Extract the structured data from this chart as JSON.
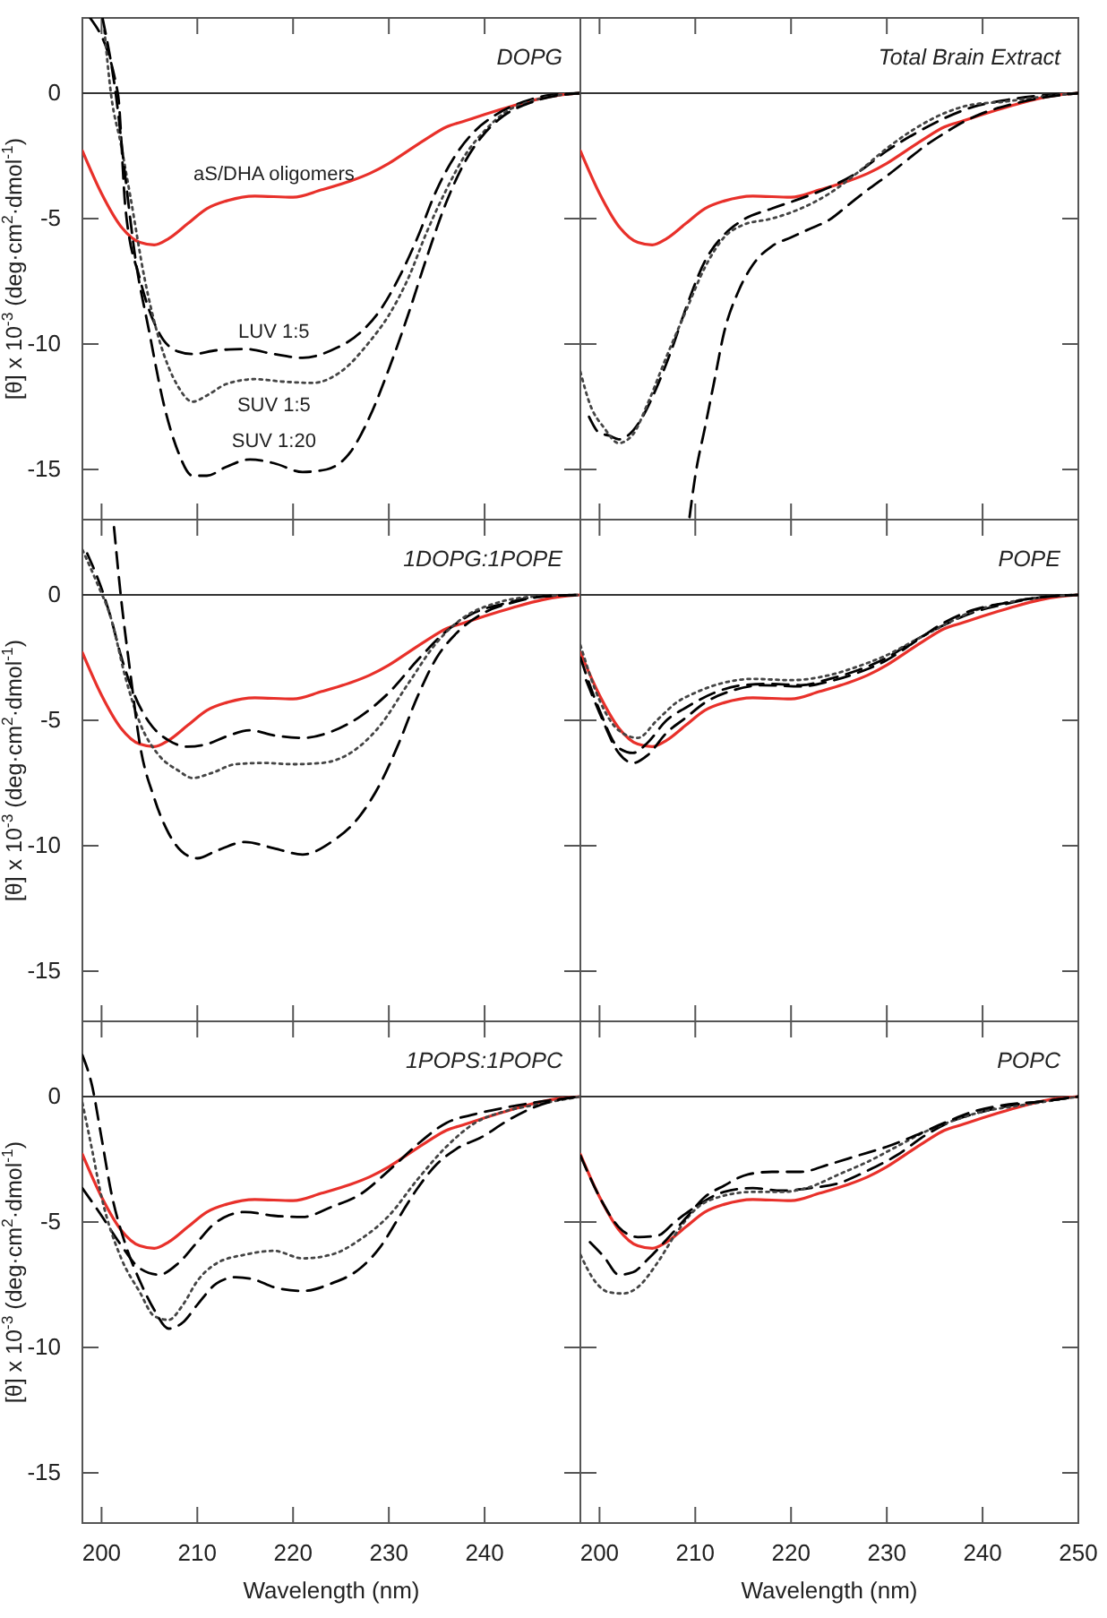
{
  "chart_data": [
    {
      "type": "line",
      "title": "DOPG",
      "ylabel": "[θ] x 10$^{-3}$ (deg·cm$^{2}$·dmol$^{-1}$)",
      "xlim": [
        198,
        250
      ],
      "ylim": [
        -17,
        3
      ],
      "xticks": [
        200,
        210,
        220,
        230,
        240
      ],
      "yticks": [
        0,
        -5,
        -10,
        -15
      ],
      "tick_labels": "y",
      "ref_lines": [
        {
          "axis": "y",
          "value": 0
        }
      ],
      "series": [
        {
          "name": "aS/DHA oligomers",
          "color": "#e8302a",
          "line_style": "solid",
          "x": [
            198,
            200,
            202,
            204,
            205.5,
            207,
            209,
            211,
            213,
            216,
            220,
            223,
            226,
            228,
            230,
            232,
            234,
            236,
            238,
            240,
            243,
            246,
            248,
            250
          ],
          "values": [
            -2.3,
            -4.0,
            -5.3,
            -5.95,
            -6.05,
            -5.8,
            -5.2,
            -4.6,
            -4.3,
            -4.1,
            -4.15,
            -3.85,
            -3.5,
            -3.2,
            -2.8,
            -2.3,
            -1.8,
            -1.35,
            -1.1,
            -0.85,
            -0.5,
            -0.2,
            -0.07,
            0
          ]
        },
        {
          "name": "LUV 1:5",
          "color": "#000000",
          "line_style": "dashed",
          "x": [
            198.8,
            201.7,
            202.5,
            204,
            206,
            208,
            209.5,
            212,
            215,
            218,
            221,
            224,
            227,
            229,
            231,
            233,
            235,
            237,
            239,
            241,
            244,
            247,
            250
          ],
          "values": [
            3,
            0,
            -4.6,
            -7.4,
            -9.55,
            -10.3,
            -10.4,
            -10.25,
            -10.2,
            -10.4,
            -10.55,
            -10.25,
            -9.55,
            -8.7,
            -7.4,
            -5.75,
            -3.85,
            -2.45,
            -1.5,
            -0.9,
            -0.35,
            -0.07,
            0
          ]
        },
        {
          "name": "SUV 1:5",
          "color": "#444444",
          "line_style": "dotted",
          "x": [
            200.3,
            201,
            202,
            203,
            204.5,
            206,
            208,
            209.5,
            211,
            213,
            216,
            219,
            222,
            225,
            228,
            230,
            232,
            234,
            236,
            238,
            240,
            242,
            245,
            248,
            250
          ],
          "values": [
            2.5,
            -0.07,
            -2.0,
            -4.1,
            -7.4,
            -9.8,
            -11.7,
            -12.3,
            -12.05,
            -11.6,
            -11.4,
            -11.5,
            -11.55,
            -11.1,
            -9.9,
            -8.85,
            -7.4,
            -5.5,
            -3.85,
            -2.45,
            -1.5,
            -0.8,
            -0.3,
            -0.07,
            0
          ]
        },
        {
          "name": "SUV 1:20",
          "color": "#000000",
          "line_style": "dashed",
          "x": [
            200.1,
            201.5,
            202.5,
            203.5,
            205,
            206.5,
            208,
            209.5,
            211,
            213,
            215.5,
            218,
            221,
            223.5,
            226,
            228,
            230,
            232,
            234,
            236,
            238,
            240,
            242,
            245,
            248,
            250
          ],
          "values": [
            3,
            -0.07,
            -3.4,
            -6.5,
            -9.55,
            -12.4,
            -14.3,
            -15.25,
            -15.25,
            -14.9,
            -14.6,
            -14.75,
            -15.1,
            -15.0,
            -14.3,
            -12.9,
            -11.0,
            -8.85,
            -6.5,
            -4.35,
            -2.7,
            -1.6,
            -0.9,
            -0.35,
            -0.07,
            0
          ]
        }
      ]
    },
    {
      "type": "line",
      "title": "Total Brain Extract",
      "xlim": [
        198,
        250
      ],
      "ylim": [
        -17,
        3
      ],
      "xticks": [
        200,
        210,
        220,
        230,
        240,
        250
      ],
      "yticks": [
        0,
        -5,
        -10,
        -15
      ],
      "tick_labels": false,
      "ref_lines": [
        {
          "axis": "y",
          "value": 0
        }
      ],
      "series": [
        {
          "color": "#e8302a",
          "line_style": "solid",
          "x": [
            198,
            200,
            202,
            204,
            205.5,
            207,
            209,
            211,
            213,
            216,
            220,
            223,
            226,
            228,
            230,
            232,
            234,
            236,
            238,
            240,
            243,
            246,
            248,
            250
          ],
          "values": [
            -2.3,
            -4.0,
            -5.3,
            -5.95,
            -6.05,
            -5.8,
            -5.2,
            -4.6,
            -4.3,
            -4.1,
            -4.15,
            -3.85,
            -3.5,
            -3.2,
            -2.8,
            -2.3,
            -1.8,
            -1.35,
            -1.1,
            -0.85,
            -0.5,
            -0.2,
            -0.07,
            0
          ]
        },
        {
          "color": "#000000",
          "line_style": "dashed",
          "x": [
            198.9,
            200,
            201,
            202,
            203.5,
            204.5,
            206,
            207.5,
            209,
            211,
            213,
            215,
            218,
            221,
            224,
            227,
            230,
            233,
            236,
            239,
            242,
            246,
            250
          ],
          "values": [
            -12.9,
            -13.55,
            -13.65,
            -13.8,
            -13.45,
            -12.9,
            -11.7,
            -10.25,
            -8.6,
            -6.7,
            -5.65,
            -5.05,
            -4.6,
            -4.2,
            -3.75,
            -3.15,
            -2.3,
            -1.6,
            -1.0,
            -0.55,
            -0.3,
            -0.1,
            0
          ]
        },
        {
          "color": "#444444",
          "line_style": "dotted",
          "x": [
            198,
            199,
            200.5,
            202,
            203.5,
            205,
            207,
            209,
            211,
            213,
            215,
            218,
            221,
            224,
            227,
            230,
            233,
            236,
            239,
            242,
            246,
            250
          ],
          "values": [
            -11.1,
            -12.4,
            -13.35,
            -13.95,
            -13.6,
            -12.4,
            -10.5,
            -8.7,
            -6.95,
            -5.75,
            -5.25,
            -5.0,
            -4.6,
            -4.0,
            -3.15,
            -2.2,
            -1.4,
            -0.8,
            -0.45,
            -0.35,
            -0.15,
            0
          ]
        },
        {
          "color": "#000000",
          "line_style": "dashed",
          "x": [
            209.4,
            210,
            211,
            212,
            213,
            214.5,
            216,
            218,
            220,
            222,
            224,
            226,
            228,
            230,
            232,
            234,
            236,
            238,
            240,
            243,
            246,
            250
          ],
          "values": [
            -16.9,
            -15.25,
            -13.35,
            -11.45,
            -9.55,
            -7.9,
            -6.85,
            -6.1,
            -5.75,
            -5.4,
            -5.05,
            -4.45,
            -3.85,
            -3.3,
            -2.7,
            -2.1,
            -1.6,
            -1.15,
            -0.8,
            -0.45,
            -0.2,
            0
          ]
        }
      ]
    },
    {
      "type": "line",
      "title": "1DOPG:1POPE",
      "ylabel": "[θ] x 10$^{-3}$ (deg·cm$^{2}$·dmol$^{-1}$)",
      "xlim": [
        198,
        250
      ],
      "ylim": [
        -17,
        3
      ],
      "xticks": [
        200,
        210,
        220,
        230,
        240
      ],
      "yticks": [
        0,
        -5,
        -10,
        -15
      ],
      "tick_labels": "y",
      "ref_lines": [
        {
          "axis": "y",
          "value": 0
        }
      ],
      "series": [
        {
          "color": "#e8302a",
          "line_style": "solid",
          "x": [
            198,
            200,
            202,
            204,
            205.5,
            207,
            209,
            211,
            213,
            216,
            220,
            223,
            226,
            228,
            230,
            232,
            234,
            236,
            238,
            240,
            243,
            246,
            248,
            250
          ],
          "values": [
            -2.3,
            -4.0,
            -5.3,
            -5.95,
            -6.05,
            -5.8,
            -5.2,
            -4.6,
            -4.3,
            -4.1,
            -4.15,
            -3.85,
            -3.5,
            -3.2,
            -2.8,
            -2.3,
            -1.8,
            -1.35,
            -1.1,
            -0.85,
            -0.5,
            -0.2,
            -0.07,
            0
          ]
        },
        {
          "color": "#000000",
          "line_style": "dashed",
          "x": [
            198.5,
            200,
            201,
            202,
            203.5,
            205,
            207,
            209,
            211,
            213,
            215.5,
            218,
            221,
            224,
            227,
            230,
            233,
            236,
            239,
            242,
            245,
            250
          ],
          "values": [
            1.65,
            0.25,
            -0.95,
            -2.4,
            -4.05,
            -5.1,
            -5.8,
            -6.05,
            -5.95,
            -5.65,
            -5.4,
            -5.6,
            -5.7,
            -5.45,
            -4.85,
            -3.9,
            -2.6,
            -1.45,
            -0.7,
            -0.35,
            -0.1,
            0
          ]
        },
        {
          "color": "#444444",
          "line_style": "dotted",
          "x": [
            198,
            199.5,
            201,
            202.5,
            204,
            206,
            208,
            209.5,
            211.5,
            214,
            217,
            220,
            223,
            226,
            229,
            232,
            235,
            238,
            241,
            245,
            250
          ],
          "values": [
            1.8,
            0.5,
            -0.95,
            -3.3,
            -5.1,
            -6.4,
            -7.0,
            -7.3,
            -7.1,
            -6.75,
            -6.7,
            -6.75,
            -6.7,
            -6.3,
            -5.25,
            -3.55,
            -1.9,
            -0.85,
            -0.35,
            -0.07,
            0
          ]
        },
        {
          "color": "#000000",
          "line_style": "dashed",
          "x": [
            201.3,
            202,
            203,
            204,
            205.5,
            207,
            209,
            210,
            212,
            215,
            218,
            221,
            224,
            227,
            229,
            231,
            233,
            235,
            237,
            240,
            243,
            246,
            250
          ],
          "values": [
            2.7,
            0,
            -3.1,
            -5.95,
            -8.1,
            -9.5,
            -10.4,
            -10.5,
            -10.2,
            -9.85,
            -10.1,
            -10.35,
            -9.85,
            -8.8,
            -7.6,
            -5.95,
            -4.05,
            -2.5,
            -1.55,
            -0.7,
            -0.3,
            -0.07,
            0
          ]
        }
      ]
    },
    {
      "type": "line",
      "title": "POPE",
      "xlim": [
        198,
        250
      ],
      "ylim": [
        -17,
        3
      ],
      "xticks": [
        200,
        210,
        220,
        230,
        240,
        250
      ],
      "yticks": [
        0,
        -5,
        -10,
        -15
      ],
      "tick_labels": false,
      "ref_lines": [
        {
          "axis": "y",
          "value": 0
        }
      ],
      "series": [
        {
          "color": "#e8302a",
          "line_style": "solid",
          "x": [
            198,
            200,
            202,
            204,
            205.5,
            207,
            209,
            211,
            213,
            216,
            220,
            223,
            226,
            228,
            230,
            232,
            234,
            236,
            238,
            240,
            243,
            246,
            248,
            250
          ],
          "values": [
            -2.3,
            -4.0,
            -5.3,
            -5.95,
            -6.05,
            -5.8,
            -5.2,
            -4.6,
            -4.3,
            -4.1,
            -4.15,
            -3.85,
            -3.5,
            -3.2,
            -2.8,
            -2.3,
            -1.8,
            -1.35,
            -1.1,
            -0.85,
            -0.5,
            -0.2,
            -0.07,
            0
          ]
        },
        {
          "color": "#000000",
          "line_style": "dashed",
          "x": [
            198,
            200,
            202,
            203.5,
            205,
            207,
            209,
            212,
            215,
            218,
            221,
            224,
            227,
            230,
            233,
            236,
            239,
            242,
            246,
            250
          ],
          "values": [
            -2.5,
            -4.6,
            -6.1,
            -6.3,
            -5.9,
            -5.0,
            -4.5,
            -3.9,
            -3.6,
            -3.55,
            -3.6,
            -3.35,
            -3.0,
            -2.5,
            -1.8,
            -1.2,
            -0.7,
            -0.4,
            -0.1,
            0
          ]
        },
        {
          "color": "#444444",
          "line_style": "dotted",
          "x": [
            198,
            200,
            202,
            204,
            206,
            208,
            210,
            213,
            216,
            220,
            224,
            227,
            230,
            233,
            236,
            239,
            242,
            246,
            250
          ],
          "values": [
            -2.0,
            -4.2,
            -5.4,
            -5.7,
            -5.0,
            -4.3,
            -3.9,
            -3.5,
            -3.35,
            -3.4,
            -3.2,
            -2.85,
            -2.4,
            -1.8,
            -1.2,
            -0.65,
            -0.35,
            -0.1,
            0
          ]
        },
        {
          "color": "#000000",
          "line_style": "dashed",
          "x": [
            198.6,
            200,
            202,
            203.5,
            205,
            207,
            209,
            211,
            214,
            217,
            221,
            224,
            227,
            230,
            233,
            236,
            239,
            242,
            246,
            250
          ],
          "values": [
            -3.4,
            -4.7,
            -6.3,
            -6.7,
            -6.4,
            -5.5,
            -4.9,
            -4.3,
            -3.8,
            -3.6,
            -3.65,
            -3.45,
            -3.1,
            -2.6,
            -1.85,
            -1.1,
            -0.6,
            -0.35,
            -0.1,
            0
          ]
        }
      ]
    },
    {
      "type": "line",
      "title": "1POPS:1POPC",
      "xlabel": "Wavelength (nm)",
      "ylabel": "[θ] x 10$^{-3}$ (deg·cm$^{2}$·dmol$^{-1}$)",
      "xlim": [
        198,
        250
      ],
      "ylim": [
        -17,
        3
      ],
      "xticks": [
        200,
        210,
        220,
        230,
        240
      ],
      "yticks": [
        0,
        -5,
        -10,
        -15
      ],
      "ref_lines": [
        {
          "axis": "y",
          "value": 0
        }
      ],
      "series": [
        {
          "color": "#e8302a",
          "line_style": "solid",
          "x": [
            198,
            200,
            202,
            204,
            205.5,
            207,
            209,
            211,
            213,
            216,
            220,
            223,
            226,
            228,
            230,
            232,
            234,
            236,
            238,
            240,
            243,
            246,
            248,
            250
          ],
          "values": [
            -2.3,
            -4.0,
            -5.3,
            -5.95,
            -6.05,
            -5.8,
            -5.2,
            -4.6,
            -4.3,
            -4.1,
            -4.15,
            -3.85,
            -3.5,
            -3.2,
            -2.8,
            -2.3,
            -1.8,
            -1.35,
            -1.1,
            -0.85,
            -0.5,
            -0.2,
            -0.07,
            0
          ]
        },
        {
          "color": "#000000",
          "line_style": "dashed",
          "x": [
            198,
            200,
            202,
            204,
            206,
            208,
            210,
            212,
            215,
            218,
            221,
            224,
            227,
            230,
            233,
            236,
            239,
            242,
            245,
            250
          ],
          "values": [
            -3.65,
            -4.75,
            -5.9,
            -6.85,
            -7.1,
            -6.65,
            -5.8,
            -5.0,
            -4.6,
            -4.75,
            -4.8,
            -4.4,
            -3.9,
            -2.95,
            -1.9,
            -1.05,
            -0.7,
            -0.45,
            -0.25,
            0
          ]
        },
        {
          "color": "#444444",
          "line_style": "dotted",
          "x": [
            198,
            199,
            200,
            202,
            204,
            205.5,
            207,
            208.5,
            210,
            212,
            215,
            218,
            221,
            224,
            227,
            230,
            233,
            236,
            239,
            242,
            245,
            250
          ],
          "values": [
            -0.25,
            -2.1,
            -4.0,
            -6.4,
            -7.8,
            -8.75,
            -8.9,
            -8.3,
            -7.35,
            -6.65,
            -6.3,
            -6.15,
            -6.45,
            -6.3,
            -5.7,
            -4.75,
            -3.3,
            -2.0,
            -1.05,
            -0.6,
            -0.35,
            0
          ]
        },
        {
          "color": "#000000",
          "line_style": "dashed",
          "x": [
            198,
            199,
            200,
            201,
            202.5,
            204,
            205.5,
            207,
            208.5,
            210,
            212,
            214,
            216,
            218,
            221,
            224,
            227,
            229,
            231,
            233,
            235,
            237,
            240,
            242,
            245,
            248,
            250
          ],
          "values": [
            1.65,
            0.45,
            -1.65,
            -3.8,
            -5.9,
            -7.35,
            -8.5,
            -9.25,
            -9.0,
            -8.3,
            -7.45,
            -7.2,
            -7.3,
            -7.6,
            -7.75,
            -7.45,
            -6.85,
            -6.05,
            -4.85,
            -3.65,
            -2.7,
            -2.1,
            -1.55,
            -1.05,
            -0.45,
            -0.1,
            0
          ]
        }
      ]
    },
    {
      "type": "line",
      "title": "POPC",
      "xlabel": "Wavelength (nm)",
      "xlim": [
        198,
        250
      ],
      "ylim": [
        -17,
        3
      ],
      "xticks": [
        200,
        210,
        220,
        230,
        240,
        250
      ],
      "yticks": [
        0,
        -5,
        -10,
        -15
      ],
      "tick_labels": "x",
      "ref_lines": [
        {
          "axis": "y",
          "value": 0
        }
      ],
      "series": [
        {
          "color": "#e8302a",
          "line_style": "solid",
          "x": [
            198,
            200,
            202,
            204,
            205.5,
            207,
            209,
            211,
            213,
            216,
            220,
            223,
            226,
            228,
            230,
            232,
            234,
            236,
            238,
            240,
            243,
            246,
            248,
            250
          ],
          "values": [
            -2.3,
            -4.0,
            -5.3,
            -5.95,
            -6.05,
            -5.8,
            -5.2,
            -4.6,
            -4.3,
            -4.1,
            -4.15,
            -3.85,
            -3.5,
            -3.2,
            -2.8,
            -2.3,
            -1.8,
            -1.35,
            -1.1,
            -0.85,
            -0.5,
            -0.2,
            -0.07,
            0
          ]
        },
        {
          "color": "#000000",
          "line_style": "dashed",
          "x": [
            198,
            200,
            202,
            204,
            206,
            208,
            210,
            213,
            216,
            219,
            222,
            225,
            228,
            231,
            234,
            237,
            240,
            243,
            246,
            250
          ],
          "values": [
            -2.35,
            -4.0,
            -5.2,
            -5.6,
            -5.55,
            -4.95,
            -4.4,
            -3.8,
            -3.65,
            -3.75,
            -3.65,
            -3.45,
            -2.95,
            -2.35,
            -1.55,
            -0.95,
            -0.6,
            -0.35,
            -0.2,
            0
          ]
        },
        {
          "color": "#444444",
          "line_style": "dotted",
          "x": [
            198,
            199.5,
            201,
            202.5,
            204,
            206,
            208,
            210,
            213,
            216,
            219,
            222,
            225,
            228,
            231,
            234,
            237,
            240,
            244,
            250
          ],
          "values": [
            -6.3,
            -7.35,
            -7.8,
            -7.85,
            -7.6,
            -6.65,
            -5.45,
            -4.5,
            -3.95,
            -3.8,
            -3.8,
            -3.6,
            -3.1,
            -2.6,
            -2.0,
            -1.4,
            -0.95,
            -0.6,
            -0.35,
            0
          ]
        },
        {
          "color": "#000000",
          "line_style": "dashed",
          "x": [
            199,
            200.5,
            202,
            203.5,
            205,
            207,
            209,
            211,
            213,
            215.5,
            218,
            221,
            224,
            227,
            230,
            233,
            236,
            239,
            242,
            246,
            250
          ],
          "values": [
            -5.8,
            -6.4,
            -7.1,
            -7.0,
            -6.5,
            -5.7,
            -4.85,
            -4.0,
            -3.55,
            -3.1,
            -3.0,
            -3.0,
            -2.7,
            -2.35,
            -2.0,
            -1.55,
            -1.05,
            -0.6,
            -0.35,
            -0.2,
            0
          ]
        }
      ]
    }
  ]
}
